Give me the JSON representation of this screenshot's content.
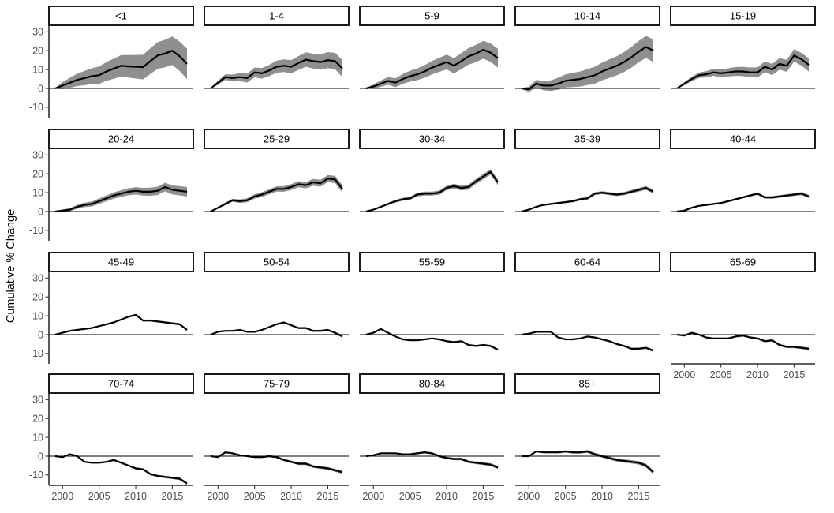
{
  "colors": {
    "line": "#000000",
    "ribbon": "#8f8f8f",
    "axis_line": "#000000",
    "tick_mark": "#333333",
    "axis_text": "#4d4d4d",
    "strip_border": "#000000",
    "strip_fill": "#ffffff",
    "background": "#ffffff"
  },
  "chart_data": {
    "type": "line",
    "ylabel": "Cumulative % Change",
    "xlabel": "",
    "grid": false,
    "legend": "none",
    "zero_reference_line": true,
    "facet_columns": 5,
    "x": [
      1999,
      2000,
      2001,
      2002,
      2003,
      2004,
      2005,
      2006,
      2007,
      2008,
      2009,
      2010,
      2011,
      2012,
      2013,
      2014,
      2015,
      2016,
      2017
    ],
    "x_ticks": [
      2000,
      2005,
      2010,
      2015
    ],
    "y_ticks": [
      30,
      20,
      10,
      0,
      -10
    ],
    "ylim": [
      -15.5,
      33.5
    ],
    "series": [
      {
        "name": "<1",
        "ci_halfwidth_end": 8.0,
        "values": [
          0,
          1.5,
          3,
          4.5,
          5.5,
          6.5,
          7,
          9,
          10.5,
          12,
          11.7,
          11.5,
          11.3,
          14.5,
          17.5,
          18.5,
          20,
          17,
          13
        ]
      },
      {
        "name": "1-4",
        "ci_halfwidth_end": 4.5,
        "values": [
          0,
          3,
          6,
          5.5,
          6,
          5.5,
          8.5,
          8,
          9.5,
          11.5,
          12,
          11.5,
          13.5,
          15.3,
          14.5,
          14,
          15,
          14.5,
          10.5
        ]
      },
      {
        "name": "5-9",
        "ci_halfwidth_end": 5.0,
        "values": [
          0,
          1,
          2.5,
          4,
          3,
          5,
          6.5,
          7.5,
          9,
          11,
          12.5,
          14,
          12,
          14.5,
          17,
          18.5,
          20.5,
          19,
          16
        ]
      },
      {
        "name": "10-14",
        "ci_halfwidth_end": 6.0,
        "values": [
          0,
          -0.5,
          2.5,
          1.5,
          1.5,
          2.5,
          4,
          4.5,
          5,
          6,
          7,
          9,
          10.5,
          12,
          14,
          16.5,
          19.5,
          22,
          20
        ]
      },
      {
        "name": "15-19",
        "ci_halfwidth_end": 3.5,
        "values": [
          0,
          2.5,
          5,
          7,
          7.5,
          8.5,
          8,
          8.5,
          9,
          9,
          8.5,
          8.5,
          11.5,
          10,
          13,
          12,
          17.5,
          15.5,
          12.5
        ]
      },
      {
        "name": "20-24",
        "ci_halfwidth_end": 2.5,
        "values": [
          0,
          0.5,
          1,
          2.5,
          3.5,
          4,
          5.5,
          7,
          8.5,
          9.5,
          10.5,
          11,
          10.5,
          10.5,
          11,
          13,
          11.5,
          11,
          10.5
        ]
      },
      {
        "name": "25-29",
        "ci_halfwidth_end": 2.0,
        "values": [
          0,
          2,
          4,
          6,
          5.5,
          6,
          8,
          9,
          10.5,
          12,
          12,
          13,
          14.5,
          14,
          15.5,
          15,
          17.5,
          17,
          12
        ]
      },
      {
        "name": "30-34",
        "ci_halfwidth_end": 1.5,
        "values": [
          0,
          1,
          2.5,
          4,
          5.5,
          6.5,
          7,
          9,
          9.5,
          9.5,
          10,
          12.5,
          13.5,
          12.5,
          13,
          16,
          18.5,
          21,
          15.5
        ]
      },
      {
        "name": "35-39",
        "ci_halfwidth_end": 1.0,
        "values": [
          0,
          1,
          2.5,
          3.5,
          4,
          4.5,
          5,
          5.5,
          6.5,
          7,
          9.5,
          10,
          9.5,
          9,
          9.5,
          10.5,
          11.5,
          12.5,
          10.5
        ]
      },
      {
        "name": "40-44",
        "ci_halfwidth_end": 0.8,
        "values": [
          0,
          0.5,
          2,
          3,
          3.5,
          4,
          4.5,
          5.5,
          6.5,
          7.5,
          8.5,
          9.5,
          7.5,
          7.5,
          8,
          8.5,
          9,
          9.5,
          8
        ]
      },
      {
        "name": "45-49",
        "ci_halfwidth_end": 0.6,
        "values": [
          0,
          1,
          2,
          2.5,
          3,
          3.5,
          4.5,
          5.5,
          6.5,
          8,
          9.5,
          10.5,
          7.5,
          7.5,
          7,
          6.5,
          6,
          5.5,
          2.5
        ]
      },
      {
        "name": "50-54",
        "ci_halfwidth_end": 0.6,
        "values": [
          0,
          1.5,
          2,
          2,
          2.5,
          1.5,
          1.5,
          2.5,
          4,
          5.5,
          6.5,
          5,
          3.5,
          3.5,
          2,
          2,
          2.5,
          1,
          -1
        ]
      },
      {
        "name": "55-59",
        "ci_halfwidth_end": 0.6,
        "values": [
          0,
          1,
          3,
          1,
          -1,
          -2.5,
          -3,
          -3,
          -2.5,
          -2,
          -2.5,
          -3.5,
          -4,
          -3.5,
          -5.5,
          -6,
          -5.5,
          -6,
          -8
        ]
      },
      {
        "name": "60-64",
        "ci_halfwidth_end": 0.6,
        "values": [
          0,
          0.5,
          1.5,
          1.5,
          1.5,
          -1.5,
          -2.5,
          -2.5,
          -2,
          -1,
          -1.5,
          -2.5,
          -3.5,
          -5,
          -6,
          -7.5,
          -7.5,
          -7,
          -8.5
        ]
      },
      {
        "name": "65-69",
        "ci_halfwidth_end": 0.7,
        "values": [
          0,
          -0.5,
          1,
          0,
          -1.5,
          -2,
          -2,
          -2,
          -1,
          -0.5,
          -1.5,
          -2,
          -3.5,
          -3,
          -5.5,
          -6.5,
          -6.5,
          -7,
          -7.5
        ]
      },
      {
        "name": "70-74",
        "ci_halfwidth_end": 0.7,
        "values": [
          0,
          -0.5,
          1,
          0,
          -3,
          -3.5,
          -3.5,
          -3,
          -2,
          -3.5,
          -5,
          -6.5,
          -7,
          -9.5,
          -10.5,
          -11,
          -11.5,
          -12,
          -14.5
        ]
      },
      {
        "name": "75-79",
        "ci_halfwidth_end": 0.8,
        "values": [
          0,
          -0.5,
          2,
          1.5,
          0.5,
          0,
          -0.5,
          -0.5,
          0,
          -0.5,
          -2,
          -3,
          -4,
          -4,
          -5.5,
          -6,
          -6.5,
          -7.5,
          -8.5
        ]
      },
      {
        "name": "80-84",
        "ci_halfwidth_end": 0.8,
        "values": [
          0,
          0.5,
          1.5,
          1.5,
          1.5,
          1,
          1,
          1.5,
          2,
          1.5,
          0,
          -1,
          -1.5,
          -1.5,
          -3,
          -3.5,
          -4,
          -4.5,
          -6
        ]
      },
      {
        "name": "85+",
        "ci_halfwidth_end": 1.0,
        "values": [
          0,
          0,
          2.5,
          2,
          2,
          2,
          2.5,
          2,
          2,
          2.5,
          1,
          0,
          -1,
          -2,
          -2.5,
          -3,
          -3.5,
          -5,
          -8.5
        ]
      }
    ]
  }
}
